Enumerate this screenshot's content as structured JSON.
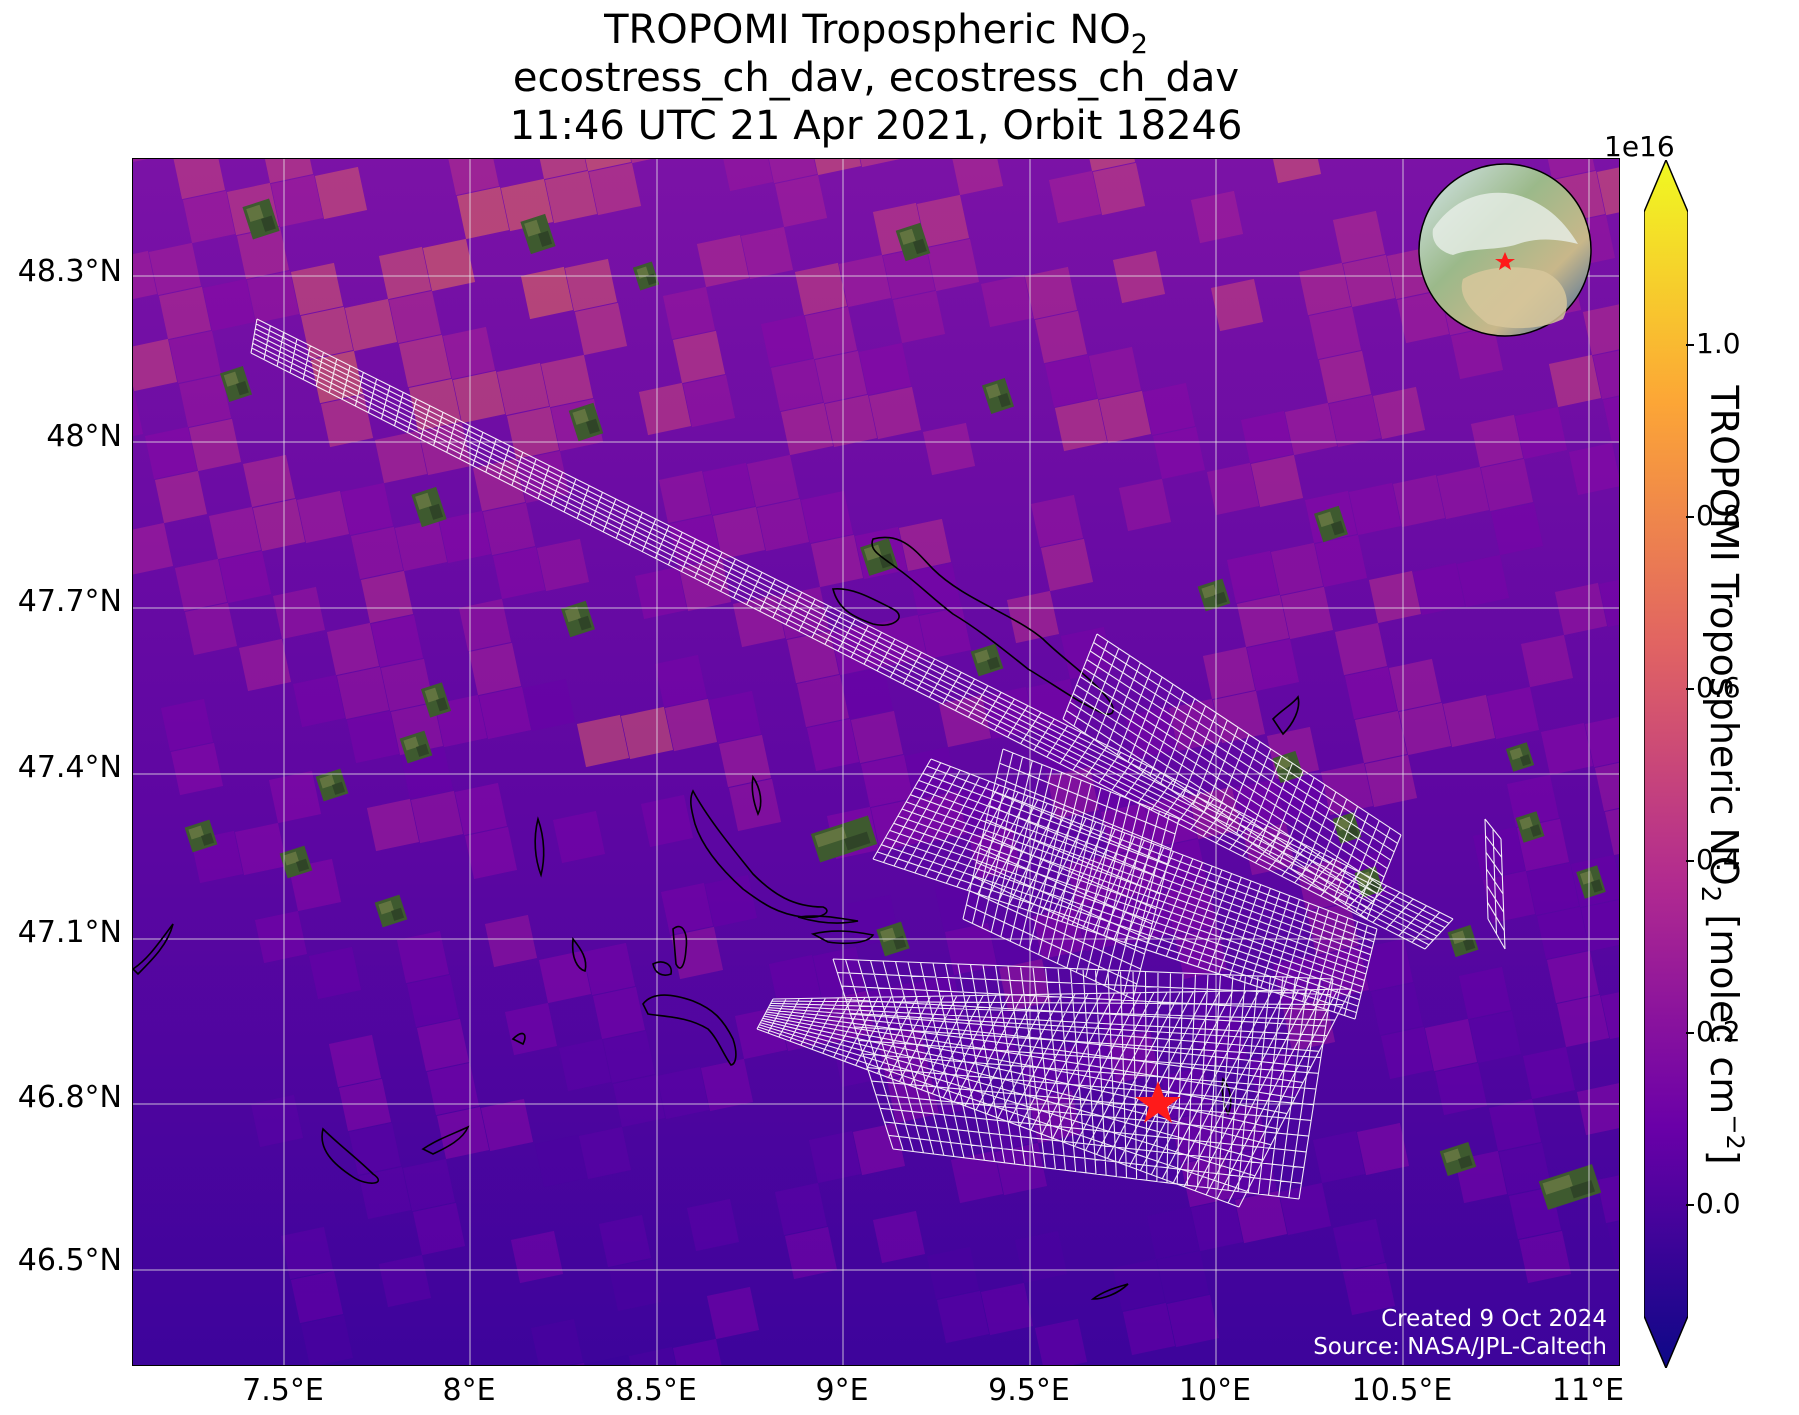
{
  "title": {
    "line1_main": "TROPOMI Tropospheric NO",
    "line1_sub": "2",
    "line2": "ecostress_ch_dav, ecostress_ch_dav",
    "line3": "11:46 UTC 21 Apr 2021, Orbit 18246"
  },
  "map": {
    "lat_ticks": [
      "48.3°N",
      "48°N",
      "47.7°N",
      "47.4°N",
      "47.1°N",
      "46.8°N",
      "46.5°N"
    ],
    "lon_ticks": [
      "7.5°E",
      "8°E",
      "8.5°E",
      "9°E",
      "9.5°E",
      "10°E",
      "10.5°E",
      "11°E"
    ],
    "site_marker": "red-star",
    "footer_line1": "Created 9 Oct 2024",
    "footer_line2": "Source: NASA/JPL-Caltech"
  },
  "colorbar": {
    "exponent": "1e16",
    "ticks": [
      "1.0",
      "0.8",
      "0.6",
      "0.4",
      "0.2",
      "0.0"
    ],
    "label_main": "TROPOMI Tropospheric NO",
    "label_sub": "2",
    "label_units": " [molec cm",
    "label_sup": "−2",
    "label_end": "]",
    "colormap": "plasma",
    "colors": [
      "#0d0887",
      "#6a00a8",
      "#b12a90",
      "#e16462",
      "#fca636",
      "#f0f921"
    ]
  }
}
